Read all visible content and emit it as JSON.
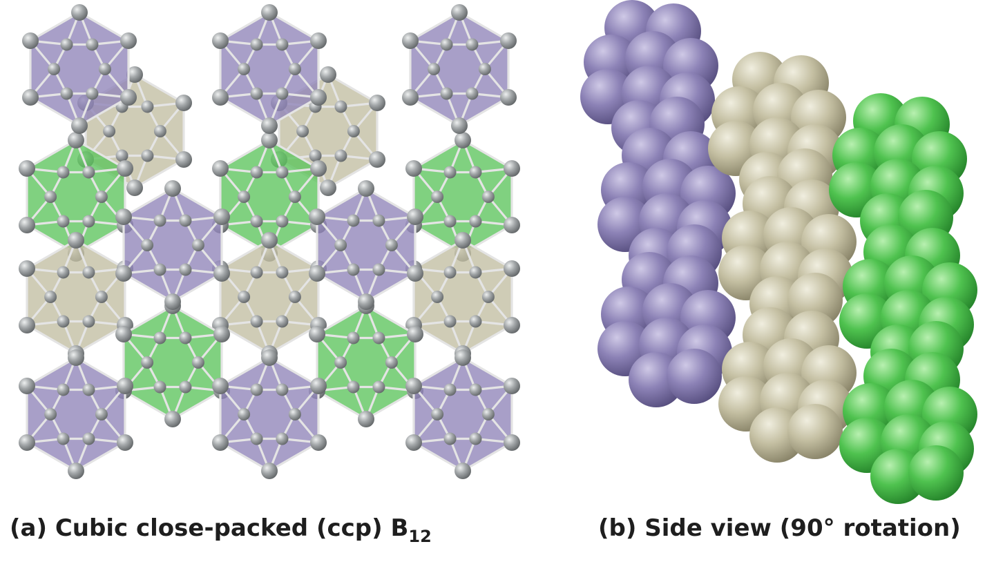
{
  "figure": {
    "panel_a": {
      "caption_main": "(a) Cubic close-packed (ccp) B",
      "caption_sub": "12"
    },
    "panel_b": {
      "caption": "(b) Side view (90° rotation)"
    }
  },
  "colors": {
    "layer_purple": "#8f84b8",
    "layer_tan": "#c2bea1",
    "layer_green": "#5cc45c",
    "boron_atom": "#8e9294",
    "bond": "#e4e4e4"
  },
  "legend_layers": [
    "purple",
    "tan",
    "green"
  ]
}
